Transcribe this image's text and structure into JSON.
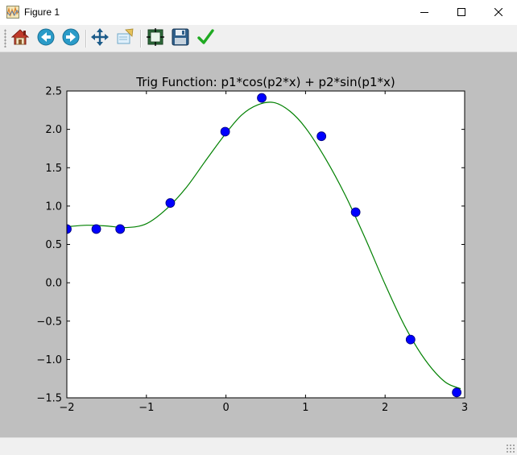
{
  "window": {
    "title": "Figure 1",
    "app_icon": "matplotlib-figure-icon",
    "controls": [
      "minimize-icon",
      "maximize-icon",
      "close-icon"
    ]
  },
  "toolbar": {
    "buttons": [
      {
        "name": "home",
        "icon": "home-icon"
      },
      {
        "name": "back",
        "icon": "back-arrow-icon"
      },
      {
        "name": "forward",
        "icon": "forward-arrow-icon"
      },
      {
        "name": "pan",
        "icon": "pan-move-icon"
      },
      {
        "name": "zoom",
        "icon": "zoom-rect-icon"
      },
      {
        "name": "subplots",
        "icon": "subplots-config-icon"
      },
      {
        "name": "save",
        "icon": "save-disk-icon"
      },
      {
        "name": "edit",
        "icon": "checkmark-icon"
      }
    ]
  },
  "colors": {
    "canvas_bg": "#bfbfbf",
    "axes_bg": "#ffffff",
    "curve": "#008000",
    "markers": "#0000ff"
  },
  "chart_data": {
    "type": "scatter",
    "title": "Trig Function: p1*cos(p2*x) + p2*sin(p1*x)",
    "xlabel": "",
    "ylabel": "",
    "xlim": [
      -2,
      3
    ],
    "ylim": [
      -1.5,
      2.5
    ],
    "x_ticks": [
      -2,
      -1,
      0,
      1,
      2,
      3
    ],
    "x_tick_labels": [
      "−2",
      "−1",
      "0",
      "1",
      "2",
      "3"
    ],
    "y_ticks": [
      -1.5,
      -1.0,
      -0.5,
      0.0,
      0.5,
      1.0,
      1.5,
      2.0,
      2.5
    ],
    "y_tick_labels": [
      "−1.5",
      "−1.0",
      "−0.5",
      "0.0",
      "0.5",
      "1.0",
      "1.5",
      "2.0",
      "2.5"
    ],
    "grid": false,
    "series": [
      {
        "kind": "scatter",
        "marker": "circle",
        "color": "#0000ff",
        "x": [
          -2.0,
          -1.63,
          -1.33,
          -0.7,
          -0.01,
          0.45,
          1.2,
          1.63,
          2.32,
          2.9
        ],
        "y": [
          0.7,
          0.7,
          0.7,
          1.04,
          1.97,
          2.41,
          1.91,
          0.92,
          -0.74,
          -1.43
        ]
      },
      {
        "kind": "line",
        "color": "#008000",
        "x": [
          -2.0,
          -1.75,
          -1.5,
          -1.25,
          -1.0,
          -0.75,
          -0.5,
          -0.25,
          0.0,
          0.2,
          0.4,
          0.6,
          0.8,
          1.0,
          1.25,
          1.5,
          1.75,
          2.0,
          2.25,
          2.5,
          2.75,
          2.95
        ],
        "y": [
          0.73,
          0.75,
          0.74,
          0.72,
          0.77,
          0.96,
          1.24,
          1.6,
          1.95,
          2.19,
          2.32,
          2.35,
          2.24,
          2.02,
          1.62,
          1.14,
          0.58,
          -0.02,
          -0.57,
          -1.0,
          -1.29,
          -1.38
        ]
      }
    ]
  }
}
